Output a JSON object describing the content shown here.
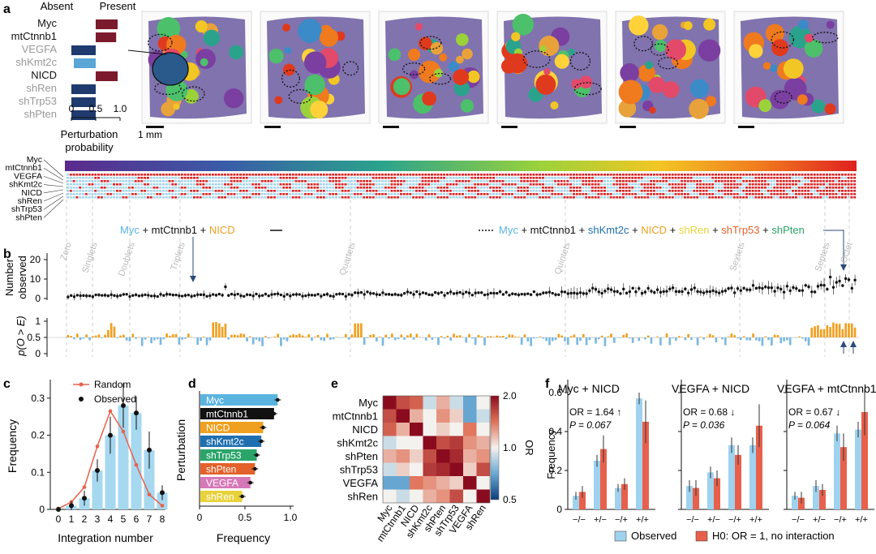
{
  "panel_a": {
    "letter": "a",
    "header_absent": "Absent",
    "header_present": "Present",
    "genes": [
      "Myc",
      "mtCtnnb1",
      "VEGFA",
      "shKmt2c",
      "NICD",
      "shRen",
      "shTrp53",
      "shPten"
    ],
    "gene_colors": [
      "#111111",
      "#111111",
      "#999999",
      "#999999",
      "#111111",
      "#999999",
      "#999999",
      "#999999"
    ],
    "bar_colors": [
      "#7b1a2c",
      "#7b1a2c",
      "#1e3a6e",
      "#5aa6d6",
      "#7b1a2c",
      "#1e3a6e",
      "#1e3a6e",
      "#1e3a6e"
    ],
    "probabilities": [
      0.95,
      0.92,
      0.0,
      0.05,
      0.95,
      0.0,
      0.0,
      0.0
    ],
    "ticks": [
      "0",
      "0.5",
      "1.0"
    ],
    "xlabel_line1": "Perturbation",
    "xlabel_line2": "probability",
    "scale_label": "1 mm",
    "tissue_count": 6
  },
  "matrix": {
    "genes": [
      "Myc",
      "mtCtnnb1",
      "VEGFA",
      "shKmt2c",
      "NICD",
      "shRen",
      "shTrp53",
      "shPten"
    ],
    "present_color": "#d62728",
    "absent_color": "#a6d4ea",
    "columns": 256
  },
  "callouts": {
    "left": [
      "Myc",
      " + ",
      "mtCtnnb1",
      " + ",
      "NICD"
    ],
    "left_colors": [
      "#5ab4e0",
      "#111111",
      "#111111",
      "#111111",
      "#f0a020"
    ],
    "right": [
      "Myc",
      " + ",
      "mtCtnnb1",
      " + ",
      "shKmt2c",
      " + ",
      "NICD",
      " + ",
      "shRen",
      " + ",
      "shTrp53",
      " + ",
      "shPten"
    ],
    "right_colors": [
      "#5ab4e0",
      "#111",
      "#111",
      "#111",
      "#1f6fb0",
      "#111",
      "#f0a020",
      "#111",
      "#e8d23a",
      "#111",
      "#e3612a",
      "#111",
      "#2aa46a"
    ]
  },
  "panel_b": {
    "letter": "b",
    "groups": [
      "Zero",
      "Singlets",
      "Doublets",
      "Triplets",
      "Quartets",
      "Quintets",
      "Sextets",
      "Septets",
      "Octet"
    ],
    "ylabel_top_line1": "Number",
    "ylabel_top_line2": "observed",
    "yticks_top": [
      "0",
      "10",
      "20"
    ],
    "ylabel_bottom": "p(O > E)",
    "yticks_bottom": [
      "0",
      "0.5",
      "1"
    ]
  },
  "panel_c": {
    "letter": "c",
    "legend_random": "Random",
    "legend_observed": "Observed",
    "ylabel": "Frequency",
    "xlabel": "Integration number",
    "yticks": [
      "0",
      "0.1",
      "0.2",
      "0.3"
    ],
    "chart_data": {
      "type": "bar",
      "categories": [
        "0",
        "1",
        "2",
        "3",
        "4",
        "5",
        "6",
        "7",
        "8"
      ],
      "values": [
        0.0,
        0.01,
        0.03,
        0.105,
        0.2,
        0.28,
        0.26,
        0.16,
        0.045
      ],
      "random": [
        0.002,
        0.02,
        0.06,
        0.17,
        0.265,
        0.21,
        0.12,
        0.04,
        0.01
      ],
      "error": [
        0.003,
        0.012,
        0.02,
        0.03,
        0.05,
        0.06,
        0.045,
        0.05,
        0.02
      ],
      "ylim": [
        0,
        0.35
      ]
    }
  },
  "panel_d": {
    "letter": "d",
    "ylabel": "Perturbation",
    "xlabel": "Frequency",
    "xticks": [
      "0",
      "0.5",
      "1.0"
    ],
    "chart_data": {
      "type": "bar",
      "categories": [
        "Myc",
        "mtCtnnb1",
        "NICD",
        "shKmt2c",
        "shTrp53",
        "shPten",
        "VEGFA",
        "shRen"
      ],
      "values": [
        0.86,
        0.82,
        0.7,
        0.68,
        0.63,
        0.61,
        0.56,
        0.47
      ],
      "colors": [
        "#5ab4e0",
        "#111111",
        "#f0a020",
        "#1f6fb0",
        "#2aa46a",
        "#e3612a",
        "#d678b8",
        "#e8d23a"
      ],
      "xlim": [
        0,
        1.0
      ]
    }
  },
  "panel_e": {
    "letter": "e",
    "genes": [
      "Myc",
      "mtCtnnb1",
      "NICD",
      "shKmt2c",
      "shPten",
      "shTrp53",
      "VEGFA",
      "shRen"
    ],
    "colorbar_label": "OR",
    "colorbar_ticks": [
      "2.0",
      "1.0",
      "0.5"
    ],
    "chart_data": {
      "type": "heatmap",
      "matrix": [
        [
          2.0,
          1.6,
          1.5,
          0.9,
          1.2,
          0.9,
          0.7,
          1.0
        ],
        [
          1.6,
          2.0,
          1.2,
          1.0,
          1.3,
          1.1,
          0.7,
          0.9
        ],
        [
          1.5,
          1.2,
          2.0,
          1.0,
          1.1,
          1.0,
          1.4,
          1.0
        ],
        [
          0.9,
          1.0,
          1.0,
          2.0,
          1.6,
          1.7,
          1.3,
          1.2
        ],
        [
          1.2,
          1.3,
          1.1,
          1.6,
          2.0,
          1.8,
          1.2,
          1.3
        ],
        [
          0.9,
          1.1,
          1.0,
          1.7,
          1.8,
          2.0,
          1.1,
          1.6
        ],
        [
          0.7,
          0.7,
          1.4,
          1.3,
          1.2,
          1.1,
          2.0,
          1.0
        ],
        [
          1.0,
          0.9,
          1.0,
          1.2,
          1.3,
          1.6,
          1.0,
          2.0
        ]
      ]
    }
  },
  "panel_f": {
    "letter": "f",
    "ylabel": "Frequency",
    "yticks": [
      "0",
      "0.2",
      "0.4",
      "0.6"
    ],
    "categories": [
      "−/−",
      "+/−",
      "−/+",
      "+/+"
    ],
    "legend_observed": "Observed",
    "legend_h0": "H0: OR = 1, no interaction",
    "subplots": [
      {
        "title": "Myc + NICD",
        "or_text": "OR = 1.64 ↑",
        "p_text": "P = 0.067",
        "observed": [
          0.07,
          0.25,
          0.11,
          0.57
        ],
        "h0": [
          0.09,
          0.31,
          0.13,
          0.45
        ],
        "obs_err": [
          0.02,
          0.03,
          0.02,
          0.03
        ],
        "h0_err": [
          0.03,
          0.07,
          0.03,
          0.11
        ]
      },
      {
        "title": "VEGFA + NICD",
        "or_text": "OR = 0.68 ↓",
        "p_text": "P = 0.036",
        "observed": [
          0.12,
          0.19,
          0.33,
          0.33
        ],
        "h0": [
          0.11,
          0.16,
          0.28,
          0.43
        ],
        "obs_err": [
          0.03,
          0.03,
          0.04,
          0.04
        ],
        "h0_err": [
          0.04,
          0.04,
          0.05,
          0.11
        ]
      },
      {
        "title": "VEGFA + mtCtnnb1",
        "or_text": "OR = 0.67 ↓",
        "p_text": "P = 0.064",
        "observed": [
          0.07,
          0.12,
          0.39,
          0.41
        ],
        "h0": [
          0.06,
          0.1,
          0.32,
          0.5
        ],
        "obs_err": [
          0.02,
          0.03,
          0.04,
          0.04
        ],
        "h0_err": [
          0.03,
          0.03,
          0.07,
          0.12
        ]
      }
    ]
  }
}
